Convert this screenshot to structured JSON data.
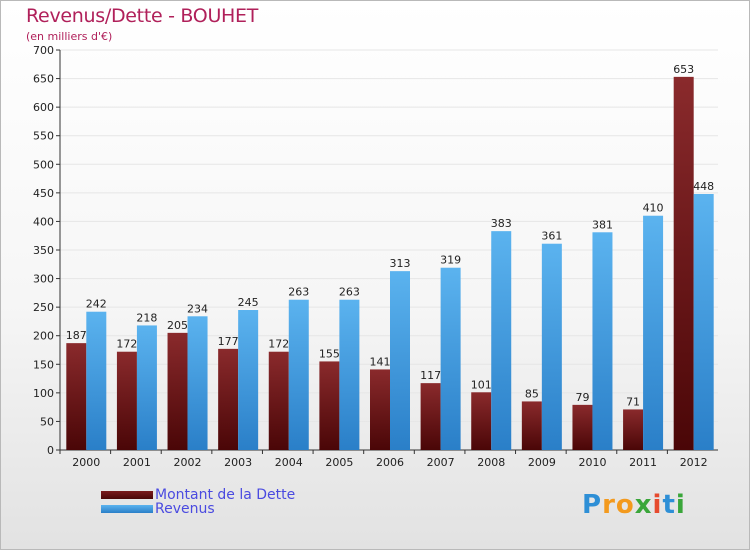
{
  "chart_data": {
    "type": "bar",
    "title": "Revenus/Dette - BOUHET",
    "subtitle": "(en milliers d'€)",
    "categories": [
      "2000",
      "2001",
      "2002",
      "2003",
      "2004",
      "2005",
      "2006",
      "2007",
      "2008",
      "2009",
      "2010",
      "2011",
      "2012"
    ],
    "series": [
      {
        "name": "Montant de la Dette",
        "color": "#6b1012",
        "values": [
          187,
          172,
          205,
          177,
          172,
          155,
          141,
          117,
          101,
          85,
          79,
          71,
          653
        ]
      },
      {
        "name": "Revenus",
        "color": "#3d9be2",
        "values": [
          242,
          218,
          234,
          245,
          263,
          263,
          313,
          319,
          383,
          361,
          381,
          410,
          448
        ]
      }
    ],
    "ylim": [
      0,
      700
    ],
    "yticks": [
      0,
      50,
      100,
      150,
      200,
      250,
      300,
      350,
      400,
      450,
      500,
      550,
      600,
      650,
      700
    ],
    "grid": true,
    "legend": "bottom-left"
  },
  "logo": {
    "text": "Proxiti",
    "letters": [
      "P",
      "r",
      "o",
      "x",
      "i",
      "t",
      "i"
    ],
    "colors": [
      "#2e8fd6",
      "#f39a1e",
      "#f39a1e",
      "#3aa63a",
      "#e64a2e",
      "#2e8fd6",
      "#3aa63a"
    ]
  }
}
